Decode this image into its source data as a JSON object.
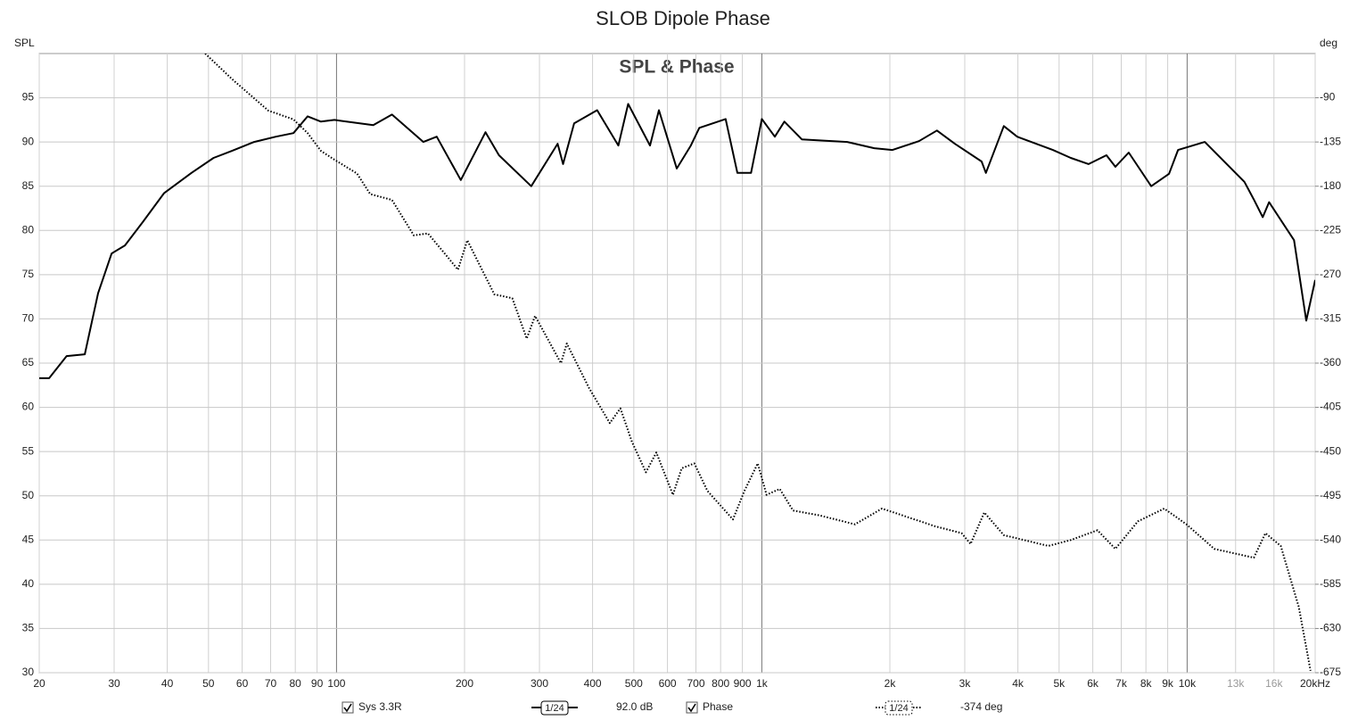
{
  "chart_data": {
    "type": "line",
    "title": "SLOB Dipole Phase",
    "subtitle": "SPL & Phase",
    "y_label": "SPL",
    "y2_label": "deg",
    "xscale": "log",
    "grid": true,
    "xlim": [
      20,
      20000
    ],
    "ylim": [
      30,
      100
    ],
    "y2lim": [
      -675,
      -45
    ],
    "xticks": [
      20,
      30,
      40,
      50,
      60,
      70,
      80,
      90,
      100,
      200,
      300,
      400,
      500,
      600,
      700,
      800,
      900,
      {
        "value": 1000,
        "label": "1k"
      },
      {
        "value": 2000,
        "label": "2k"
      },
      {
        "value": 3000,
        "label": "3k"
      },
      {
        "value": 4000,
        "label": "4k"
      },
      {
        "value": 5000,
        "label": "5k"
      },
      {
        "value": 6000,
        "label": "6k"
      },
      {
        "value": 7000,
        "label": "7k"
      },
      {
        "value": 8000,
        "label": "8k"
      },
      {
        "value": 9000,
        "label": "9k"
      },
      {
        "value": 10000,
        "label": "10k"
      },
      {
        "value": 13000,
        "label": "13k"
      },
      {
        "value": 16000,
        "label": "16k"
      },
      {
        "value": 20000,
        "label": "20kHz"
      }
    ],
    "yticks": [
      30,
      35,
      40,
      45,
      50,
      55,
      60,
      65,
      70,
      75,
      80,
      85,
      90,
      95
    ],
    "y2ticks": [
      -675,
      -630,
      -585,
      -540,
      -495,
      -450,
      -405,
      -360,
      -315,
      -270,
      -225,
      -180,
      -135,
      -90
    ],
    "series": [
      {
        "name": "Sys 3.3R",
        "color": "#000000",
        "dash": "solid",
        "smoothing": "1/24",
        "readout": "92.0 dB",
        "x": [
          20,
          21.1,
          23.2,
          25.6,
          27.5,
          29.6,
          31.8,
          35.1,
          39.3,
          45.6,
          51.4,
          56.8,
          64,
          72,
          79.2,
          85.5,
          91.9,
          98.9,
          122,
          135,
          160,
          172,
          196,
          224,
          241,
          287,
          331,
          341,
          362,
          410,
          460,
          485,
          546,
          573,
          631,
          681,
          713,
          822,
          876,
          943,
          1000,
          1073,
          1130,
          1242,
          1588,
          1838,
          2028,
          2341,
          2580,
          2842,
          3286,
          3364,
          3706,
          3985,
          4834,
          5325,
          5866,
          6461,
          6780,
          7290,
          8230,
          9065,
          9520,
          11000,
          13630,
          14350,
          15060,
          15580,
          17840,
          19060,
          20000
        ],
        "values": [
          63.3,
          63.3,
          65.8,
          66,
          72.9,
          77.4,
          78.3,
          81,
          84.2,
          86.5,
          88.2,
          89,
          90,
          90.6,
          91,
          92.9,
          92.3,
          92.5,
          91.9,
          93.1,
          90,
          90.6,
          85.7,
          91.1,
          88.5,
          85,
          89.8,
          87.5,
          92.1,
          93.6,
          89.6,
          94.3,
          89.6,
          93.6,
          87,
          89.6,
          91.6,
          92.6,
          86.5,
          86.5,
          92.6,
          90.6,
          92.3,
          90.3,
          90,
          89.3,
          89.1,
          90.1,
          91.3,
          89.8,
          87.8,
          86.5,
          91.8,
          90.6,
          89.1,
          88.2,
          87.5,
          88.5,
          87.2,
          88.8,
          85,
          86.4,
          89.1,
          90,
          85.5,
          83.5,
          81.5,
          83.2,
          78.9,
          69.8,
          74.4
        ]
      },
      {
        "name": "Phase",
        "color": "#000000",
        "dash": "dotted",
        "axis": "y2",
        "smoothing": "1/24",
        "readout": "-374 deg",
        "x": [
          49.1,
          56.8,
          69.1,
          79.2,
          85.5,
          91.9,
          98.9,
          111.7,
          120,
          135,
          152,
          164,
          180,
          193,
          203,
          218,
          235,
          259,
          280,
          293,
          337,
          348,
          392,
          439,
          465,
          495,
          534,
          565,
          618,
          648,
          694,
          745,
          855,
          910,
          978,
          1026,
          1102,
          1184,
          1368,
          1656,
          1917,
          2212,
          2555,
          2950,
          3096,
          3334,
          3706,
          4716,
          5325,
          6152,
          6780,
          7656,
          8833,
          9965,
          11580,
          14350,
          15280,
          16600,
          18300,
          19500
        ],
        "values": [
          -45,
          -71,
          -103,
          -112,
          -126,
          -144,
          -153,
          -167,
          -188,
          -194,
          -230,
          -228,
          -249,
          -265,
          -235,
          -262,
          -290,
          -294,
          -335,
          -312,
          -360,
          -340,
          -385,
          -421,
          -406,
          -440,
          -471,
          -451,
          -494,
          -467,
          -462,
          -490,
          -519,
          -490,
          -462,
          -494,
          -488,
          -510,
          -515,
          -524,
          -508,
          -517,
          -526,
          -533,
          -544,
          -512,
          -535,
          -546,
          -540,
          -530,
          -549,
          -521,
          -508,
          -524,
          -549,
          -558,
          -533,
          -546,
          -608,
          -673
        ]
      }
    ]
  }
}
